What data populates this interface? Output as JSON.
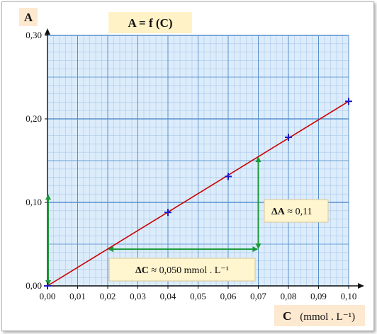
{
  "chart_data": {
    "type": "line",
    "title": "A = f (C)",
    "ylabel": "A",
    "xlabel": "C",
    "xunit": "(mmol . L⁻¹)",
    "xlim": [
      0,
      0.1
    ],
    "ylim": [
      0,
      0.3
    ],
    "x_ticks": [
      "0,00",
      "0,01",
      "0,02",
      "0,03",
      "0,04",
      "0,05",
      "0,06",
      "0,07",
      "0,08",
      "0,09",
      "0,10"
    ],
    "y_ticks": [
      "0,00",
      "0,10",
      "0,20",
      "0,30"
    ],
    "x_tick_values": [
      0,
      0.01,
      0.02,
      0.03,
      0.04,
      0.05,
      0.06,
      0.07,
      0.08,
      0.09,
      0.1
    ],
    "y_tick_values": [
      0,
      0.1,
      0.2,
      0.3
    ],
    "grid": true,
    "points": [
      {
        "x": 0.0,
        "y": 0.0
      },
      {
        "x": 0.04,
        "y": 0.088
      },
      {
        "x": 0.06,
        "y": 0.131
      },
      {
        "x": 0.08,
        "y": 0.178
      },
      {
        "x": 0.1,
        "y": 0.221
      }
    ],
    "fit_line": {
      "x": [
        0.0,
        0.1
      ],
      "y": [
        0.0,
        0.221
      ]
    },
    "annotations": {
      "delta_c": {
        "symbol": "ΔC",
        "text": " ≈ 0,050 mmol . L⁻¹",
        "x_from": 0.02,
        "x_to": 0.07,
        "y": 0.044
      },
      "delta_a": {
        "symbol": "ΔA",
        "text": " ≈ 0,11",
        "x": 0.07,
        "y_from": 0.044,
        "y_to": 0.155
      },
      "origin_arrow": {
        "x": 0.0,
        "y_from": 0.0,
        "y_to": 0.11
      }
    },
    "colors": {
      "line": "#cc0000",
      "marker": "#1a1acc",
      "annotation": "#1a9a3a",
      "grid_major": "#6a9fd4",
      "grid_minor": "#aac8e8",
      "plot_bg": "#dcecfb"
    }
  }
}
